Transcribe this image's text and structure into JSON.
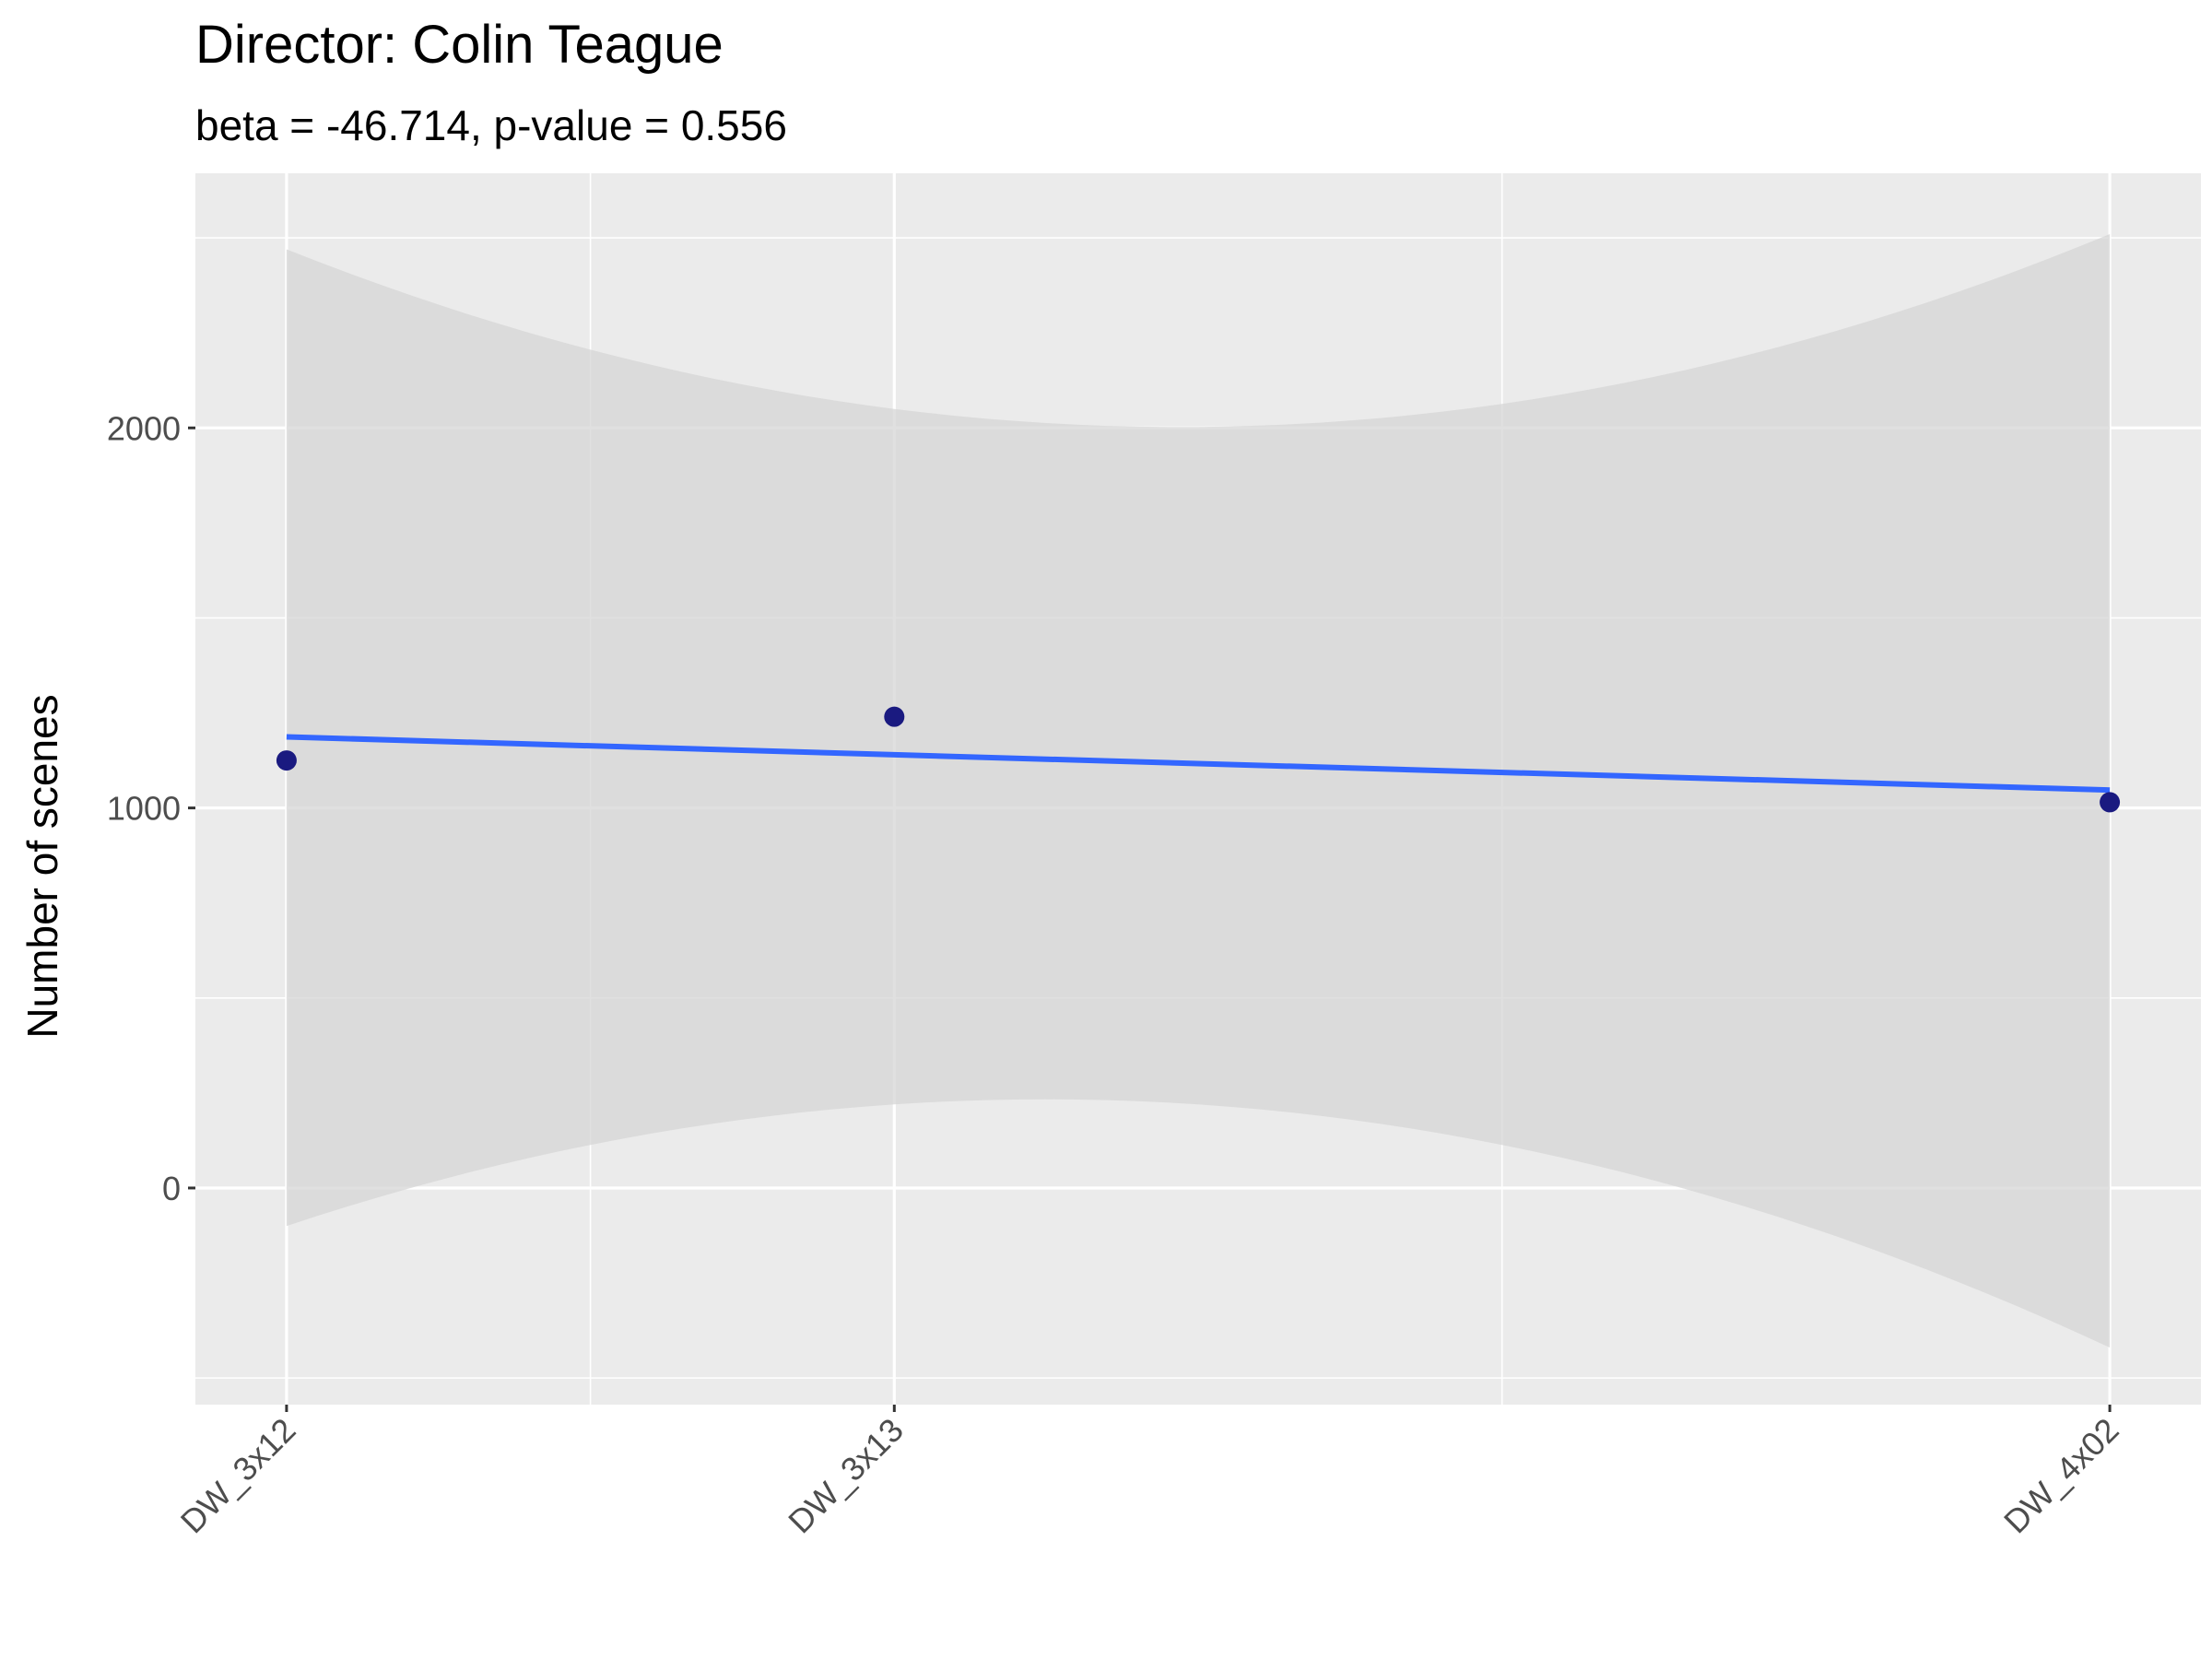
{
  "chart_data": {
    "type": "scatter",
    "title": "Director: Colin Teague",
    "subtitle": "beta = -46.714, p-value = 0.556",
    "xlabel": "",
    "ylabel": "Number of scenes",
    "x_is_categorical": true,
    "categories": [
      "DW_3x12",
      "DW_3x13",
      "DW_4x02"
    ],
    "x_positions": [
      1,
      2,
      4
    ],
    "xlim": [
      0.85,
      4.15
    ],
    "ylim": [
      -570,
      2670
    ],
    "yticks": [
      0,
      1000,
      2000
    ],
    "grid": true,
    "points": [
      {
        "x": "DW_3x12",
        "y": 1125
      },
      {
        "x": "DW_3x13",
        "y": 1240
      },
      {
        "x": "DW_4x02",
        "y": 1015
      }
    ],
    "regression": {
      "x": [
        1,
        2,
        4
      ],
      "fit": [
        1187,
        1140,
        1047
      ],
      "ci_lower": [
        -100,
        220,
        -420
      ],
      "ci_upper": [
        2470,
        2050,
        2510
      ]
    },
    "colors": {
      "panel": "#ebebeb",
      "grid": "#ffffff",
      "points": "#1a1a80",
      "line": "#3366ff",
      "ribbon": "#d6d6d6"
    }
  }
}
